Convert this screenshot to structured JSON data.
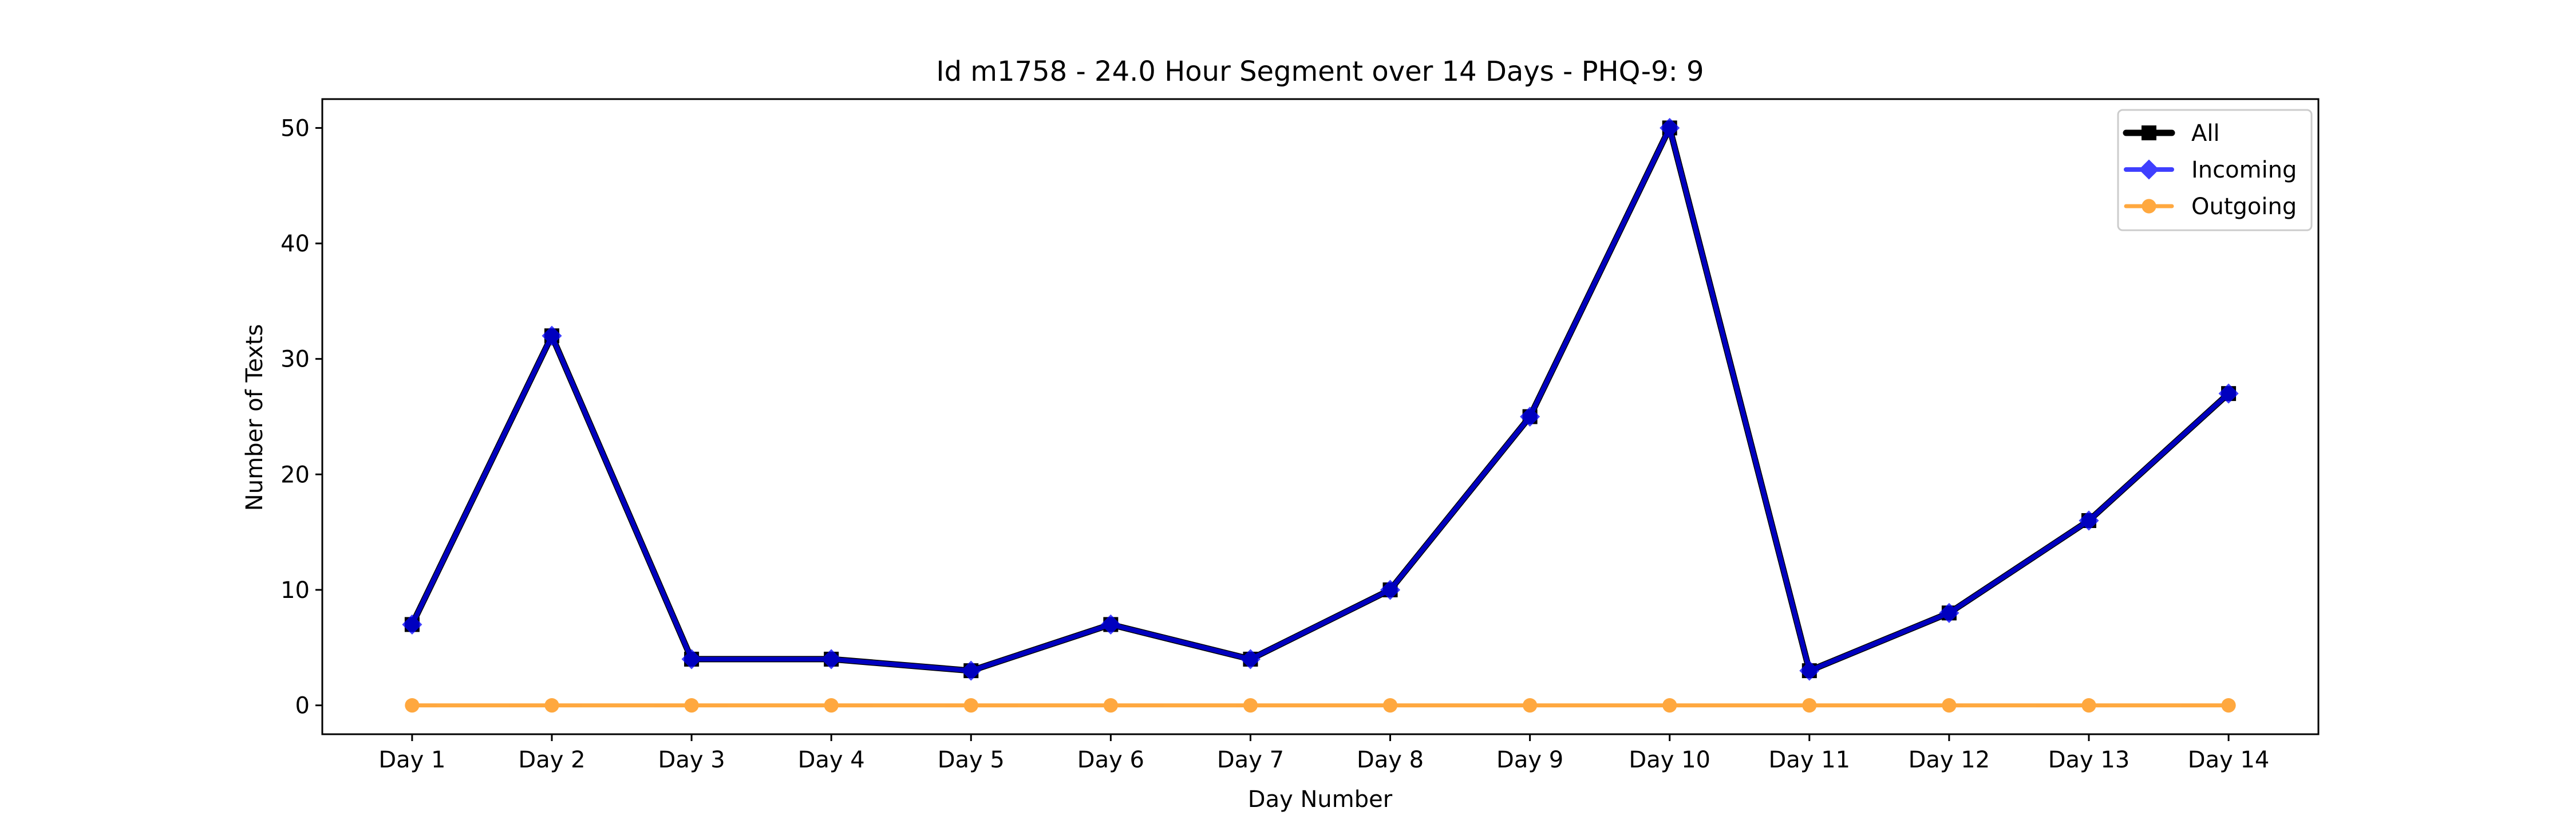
{
  "chart_data": {
    "type": "line",
    "title": "Id m1758 - 24.0 Hour Segment over 14 Days - PHQ-9: 9",
    "xlabel": "Day Number",
    "ylabel": "Number of Texts",
    "categories": [
      "Day 1",
      "Day 2",
      "Day 3",
      "Day 4",
      "Day 5",
      "Day 6",
      "Day 7",
      "Day 8",
      "Day 9",
      "Day 10",
      "Day 11",
      "Day 12",
      "Day 13",
      "Day 14"
    ],
    "ylim": [
      -2.5,
      52.5
    ],
    "yticks": [
      0,
      10,
      20,
      30,
      40,
      50
    ],
    "grid": false,
    "legend_position": "top-right",
    "series": [
      {
        "name": "All",
        "color": "#000000",
        "marker": "square",
        "values": [
          7,
          32,
          4,
          4,
          3,
          7,
          4,
          10,
          25,
          50,
          3,
          8,
          16,
          27
        ]
      },
      {
        "name": "Incoming",
        "color": "#0000ff",
        "marker": "diamond",
        "values": [
          7,
          32,
          4,
          4,
          3,
          7,
          4,
          10,
          25,
          50,
          3,
          8,
          16,
          27
        ]
      },
      {
        "name": "Outgoing",
        "color": "#ff8c00",
        "marker": "circle",
        "values": [
          0,
          0,
          0,
          0,
          0,
          0,
          0,
          0,
          0,
          0,
          0,
          0,
          0,
          0
        ]
      }
    ]
  }
}
